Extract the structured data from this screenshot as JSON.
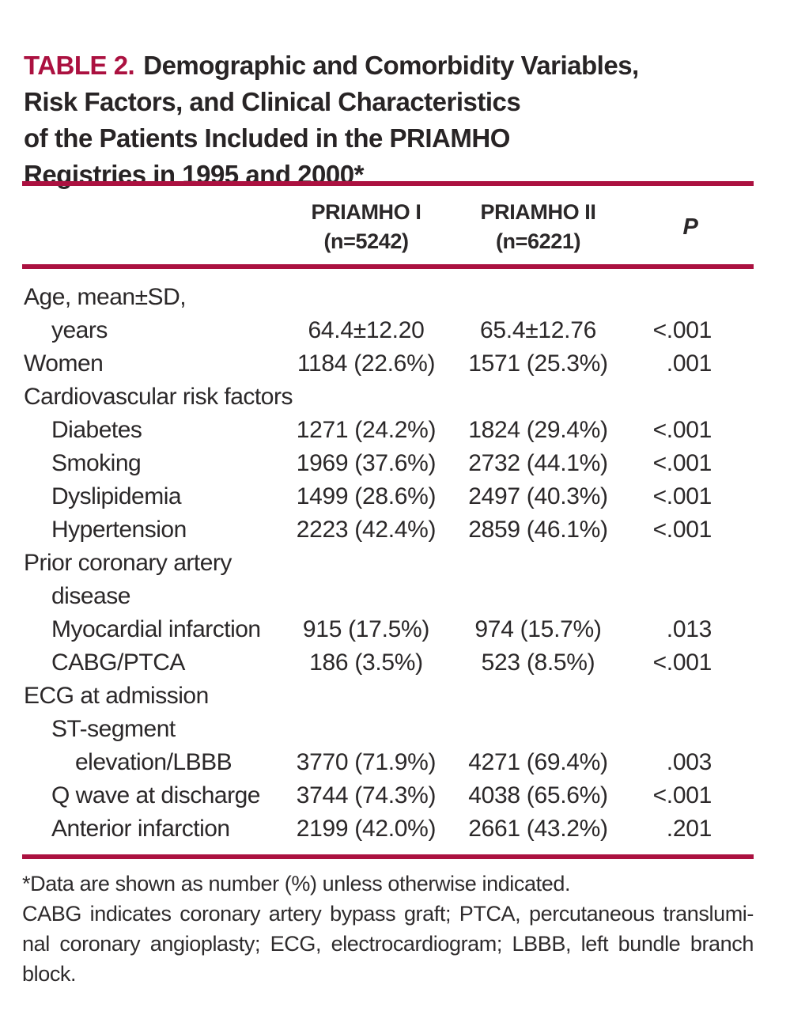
{
  "colors": {
    "accent": "#ab1140",
    "text": "#2b2829"
  },
  "title": {
    "label": "TABLE 2.",
    "lines": [
      "Demographic and Comorbidity Variables,",
      "Risk Factors, and Clinical Characteristics",
      "of the Patients Included in the PRIAMHO",
      "Registries in 1995 and 2000*"
    ]
  },
  "header": {
    "col1": {
      "name": "PRIAMHO I",
      "n": "(n=5242)"
    },
    "col2": {
      "name": "PRIAMHO II",
      "n": "(n=6221)"
    },
    "p": "P"
  },
  "table": {
    "rows": [
      {
        "label": "Age, mean±SD,",
        "indent": 0,
        "priamho1": "",
        "priamho2": "",
        "p": ""
      },
      {
        "label": "years",
        "indent": 1,
        "priamho1": "64.4±12.20",
        "priamho2": "65.4±12.76",
        "p": "<.001"
      },
      {
        "label": "Women",
        "indent": 0,
        "priamho1": "1184 (22.6%)",
        "priamho2": "1571 (25.3%)",
        "p": ".001"
      },
      {
        "label": "Cardiovascular risk factors",
        "indent": 0,
        "priamho1": "",
        "priamho2": "",
        "p": ""
      },
      {
        "label": "Diabetes",
        "indent": 1,
        "priamho1": "1271 (24.2%)",
        "priamho2": "1824 (29.4%)",
        "p": "<.001"
      },
      {
        "label": "Smoking",
        "indent": 1,
        "priamho1": "1969 (37.6%)",
        "priamho2": "2732 (44.1%)",
        "p": "<.001"
      },
      {
        "label": "Dyslipidemia",
        "indent": 1,
        "priamho1": "1499 (28.6%)",
        "priamho2": "2497 (40.3%)",
        "p": "<.001"
      },
      {
        "label": "Hypertension",
        "indent": 1,
        "priamho1": "2223 (42.4%)",
        "priamho2": "2859 (46.1%)",
        "p": "<.001"
      },
      {
        "label": "Prior coronary artery",
        "indent": 0,
        "priamho1": "",
        "priamho2": "",
        "p": ""
      },
      {
        "label": "disease",
        "indent": 1,
        "priamho1": "",
        "priamho2": "",
        "p": ""
      },
      {
        "label": "Myocardial infarction",
        "indent": 1,
        "priamho1": "915 (17.5%)",
        "priamho2": "974 (15.7%)",
        "p": ".013"
      },
      {
        "label": "CABG/PTCA",
        "indent": 1,
        "priamho1": "186 (3.5%)",
        "priamho2": "523 (8.5%)",
        "p": "<.001"
      },
      {
        "label": "ECG at admission",
        "indent": 0,
        "priamho1": "",
        "priamho2": "",
        "p": ""
      },
      {
        "label": "ST-segment",
        "indent": 1,
        "priamho1": "",
        "priamho2": "",
        "p": ""
      },
      {
        "label": "elevation/LBBB",
        "indent": 2,
        "priamho1": "3770 (71.9%)",
        "priamho2": "4271 (69.4%)",
        "p": ".003"
      },
      {
        "label": "Q wave at discharge",
        "indent": 1,
        "priamho1": "3744 (74.3%)",
        "priamho2": "4038 (65.6%)",
        "p": "<.001"
      },
      {
        "label": "Anterior infarction",
        "indent": 1,
        "priamho1": "2199 (42.0%)",
        "priamho2": "2661 (43.2%)",
        "p": ".201"
      }
    ]
  },
  "footnotes": [
    "*Data are shown as number (%) unless otherwise indicated.",
    "CABG indicates coronary artery bypass graft; PTCA, percutaneous translumi-",
    "nal coronary angioplasty; ECG, electrocardiogram; LBBB, left bundle branch",
    "block."
  ]
}
